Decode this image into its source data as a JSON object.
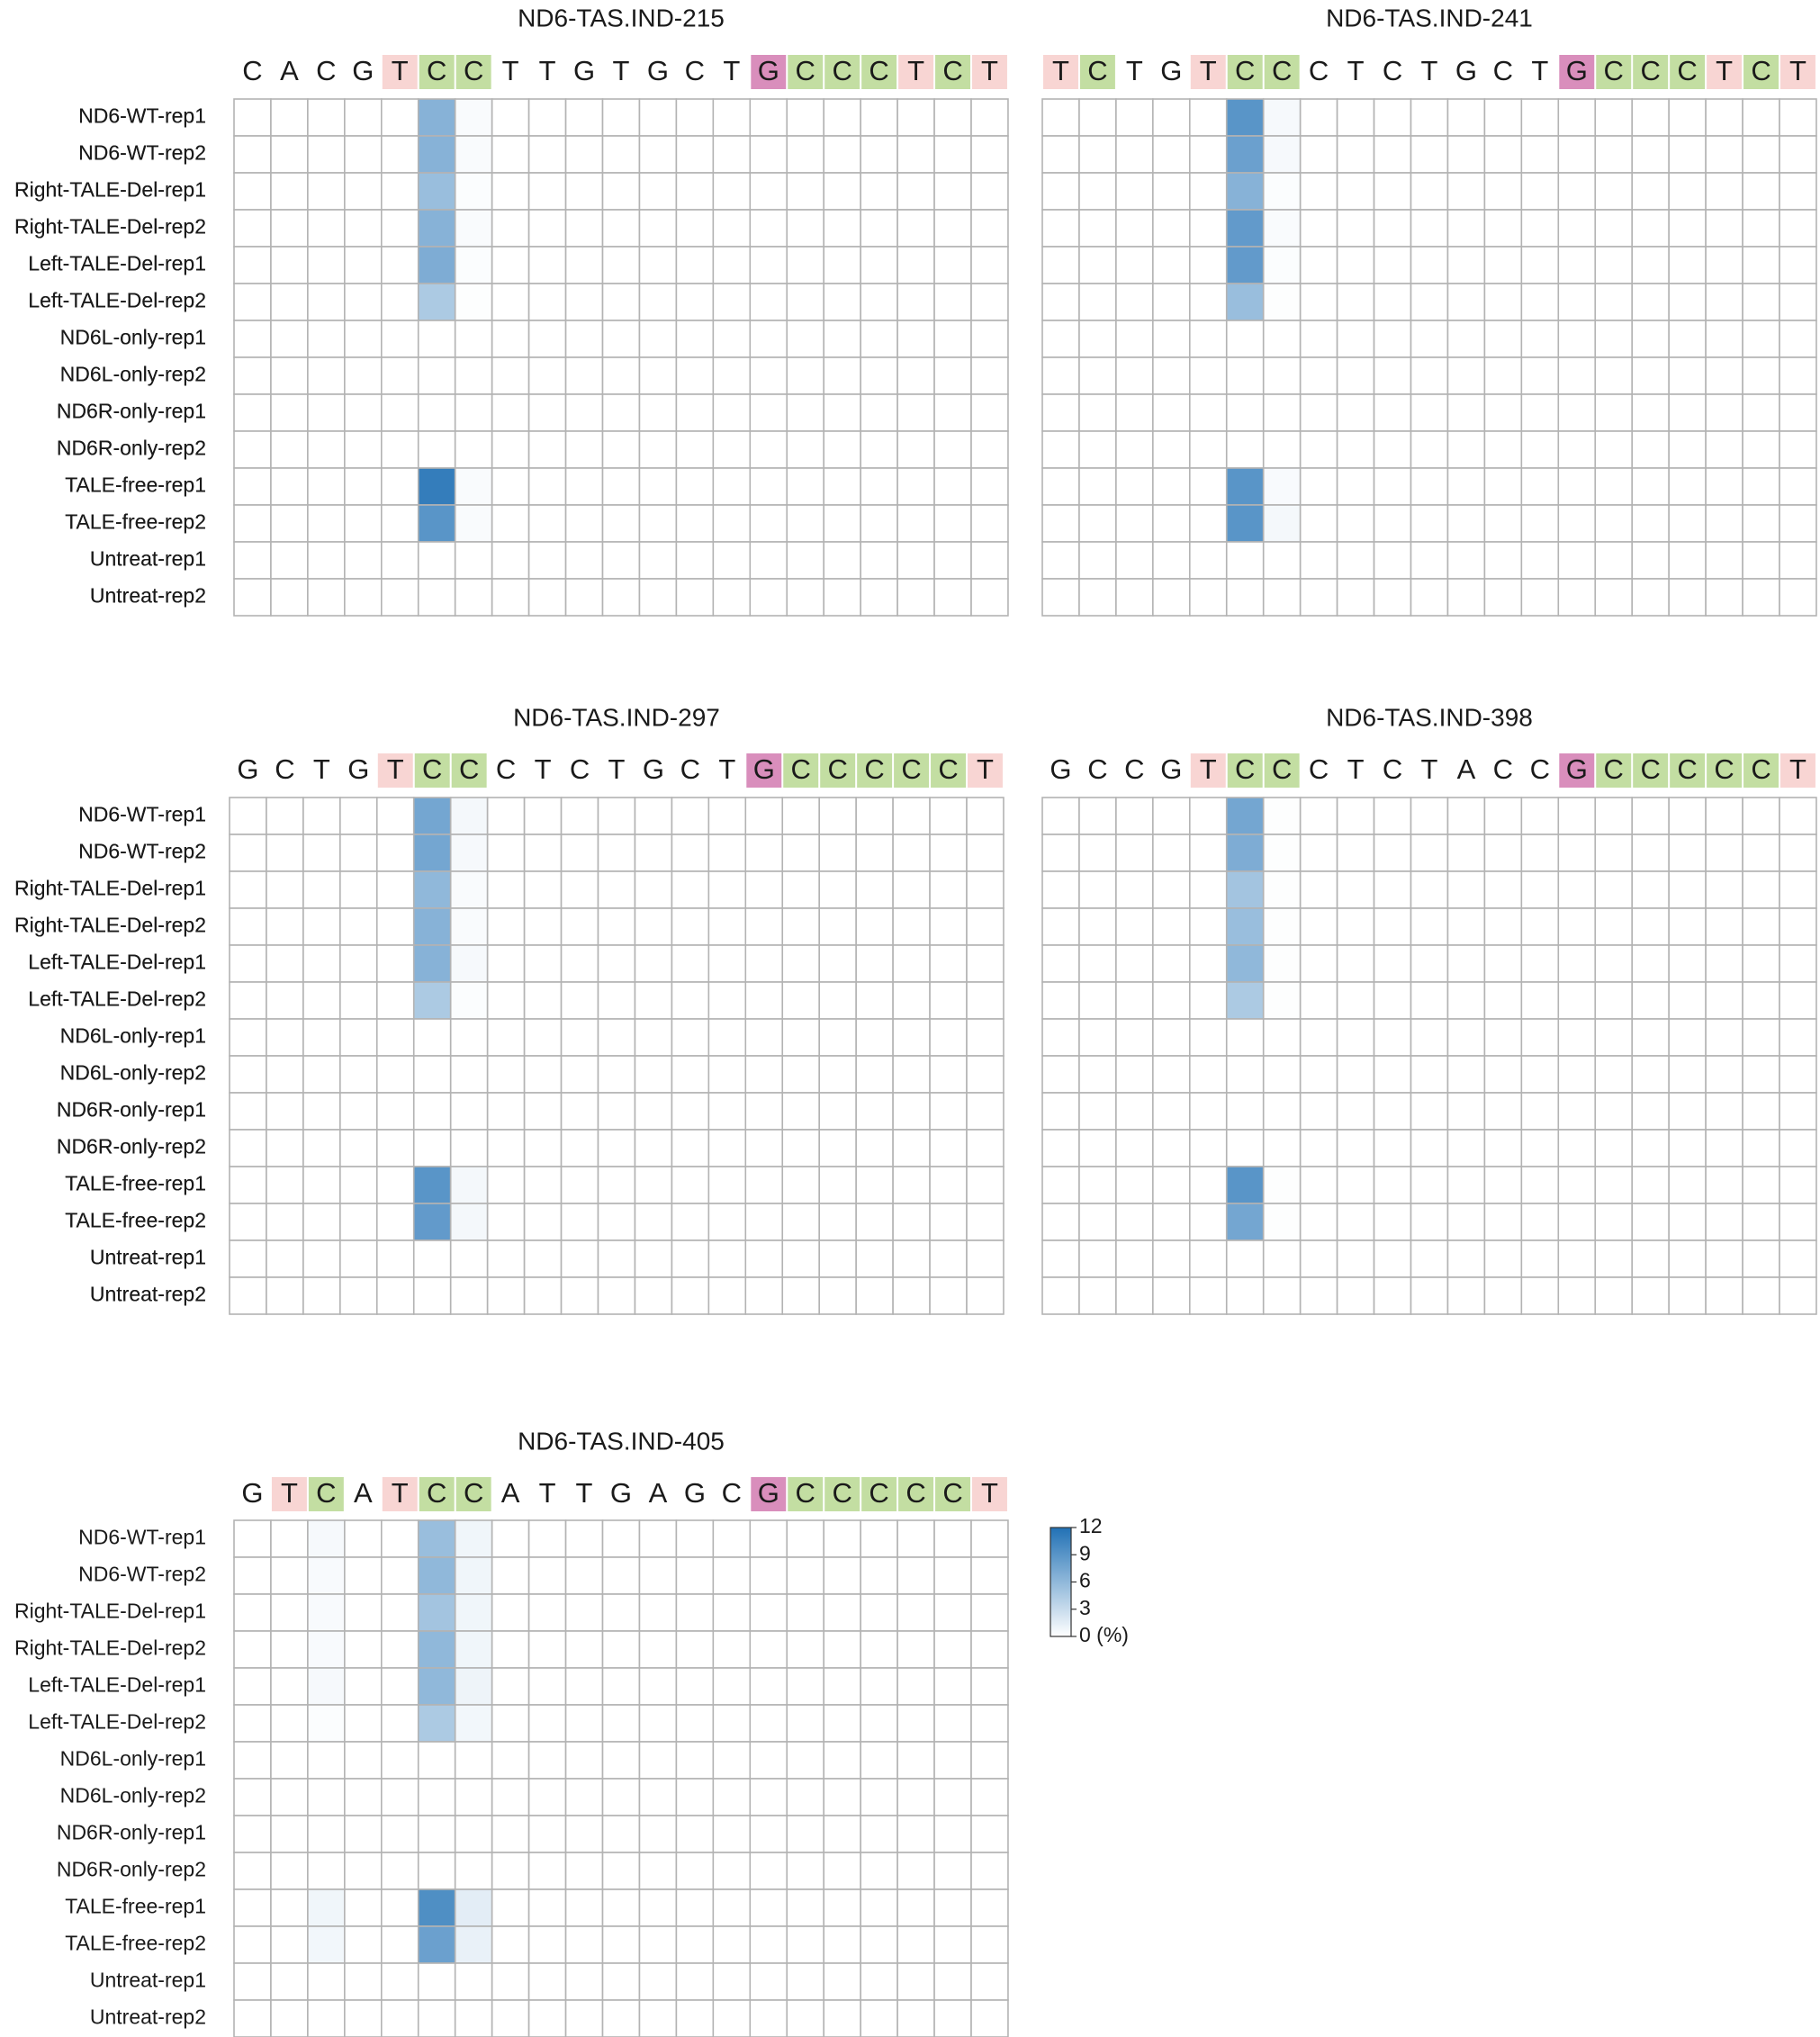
{
  "legend": {
    "ticks": [
      "12",
      "9",
      "6",
      "3",
      "0 (%)"
    ],
    "tick_values": [
      12,
      9,
      6,
      3,
      0
    ],
    "min": 0,
    "max": 12,
    "color_low": "#ffffff",
    "color_high": "#2171b5"
  },
  "base_colors": {
    "T": "#f8d5d3",
    "C": "#c3dea2",
    "G": "#d98ebc",
    "A": "none"
  },
  "row_labels": [
    "ND6-WT-rep1",
    "ND6-WT-rep2",
    "Right-TALE-Del-rep1",
    "Right-TALE-Del-rep2",
    "Left-TALE-Del-rep1",
    "Left-TALE-Del-rep2",
    "ND6L-only-rep1",
    "ND6L-only-rep2",
    "ND6R-only-rep1",
    "ND6R-only-rep2",
    "TALE-free-rep1",
    "TALE-free-rep2",
    "Untreat-rep1",
    "Untreat-rep2"
  ],
  "chart_data": [
    {
      "type": "heatmap",
      "title": "ND6-TAS.IND-215",
      "bases": [
        "C",
        "A",
        "C",
        "G",
        "T",
        "C",
        "C",
        "T",
        "T",
        "G",
        "T",
        "G",
        "C",
        "T",
        "G",
        "C",
        "C",
        "C",
        "T",
        "C",
        "T"
      ],
      "highlighted": [
        false,
        false,
        false,
        false,
        true,
        true,
        true,
        false,
        false,
        false,
        false,
        false,
        false,
        false,
        true,
        true,
        true,
        true,
        true,
        true,
        true
      ],
      "values": {
        "5": [
          6.5,
          6.5,
          5.5,
          6.5,
          7,
          4.5,
          0,
          0,
          0,
          0,
          11,
          9,
          0,
          0
        ],
        "6": [
          0.3,
          0.3,
          0.2,
          0.3,
          0.2,
          0.1,
          0,
          0,
          0,
          0,
          0.3,
          0.3,
          0,
          0
        ]
      }
    },
    {
      "type": "heatmap",
      "title": "ND6-TAS.IND-241",
      "bases": [
        "T",
        "C",
        "T",
        "G",
        "T",
        "C",
        "C",
        "C",
        "T",
        "C",
        "T",
        "G",
        "C",
        "T",
        "G",
        "C",
        "C",
        "C",
        "T",
        "C",
        "T"
      ],
      "highlighted": [
        true,
        true,
        false,
        false,
        true,
        true,
        true,
        false,
        false,
        false,
        false,
        false,
        false,
        false,
        true,
        true,
        true,
        true,
        true,
        true,
        true
      ],
      "values": {
        "5": [
          9,
          8,
          6.5,
          8.5,
          8.5,
          5.5,
          0,
          0,
          0,
          0,
          9,
          9,
          0,
          0
        ],
        "6": [
          0.5,
          0.5,
          0.2,
          0.3,
          0.2,
          0.1,
          0,
          0,
          0,
          0,
          0.4,
          0.6,
          0,
          0
        ]
      }
    },
    {
      "type": "heatmap",
      "title": "ND6-TAS.IND-297",
      "bases": [
        "G",
        "C",
        "T",
        "G",
        "T",
        "C",
        "C",
        "C",
        "T",
        "C",
        "T",
        "G",
        "C",
        "T",
        "G",
        "C",
        "C",
        "C",
        "C",
        "C",
        "T"
      ],
      "highlighted": [
        false,
        false,
        false,
        false,
        true,
        true,
        true,
        false,
        false,
        false,
        false,
        false,
        false,
        false,
        true,
        true,
        true,
        true,
        true,
        true,
        true
      ],
      "values": {
        "5": [
          7.5,
          7.5,
          6,
          6.5,
          6.5,
          4.5,
          0,
          0,
          0,
          0,
          9,
          8.5,
          0,
          0
        ],
        "6": [
          0.6,
          0.5,
          0.3,
          0.3,
          0.5,
          0.2,
          0,
          0,
          0,
          0,
          0.6,
          0.6,
          0,
          0
        ]
      }
    },
    {
      "type": "heatmap",
      "title": "ND6-TAS.IND-398",
      "bases": [
        "G",
        "C",
        "C",
        "G",
        "T",
        "C",
        "C",
        "C",
        "T",
        "C",
        "T",
        "A",
        "C",
        "C",
        "G",
        "C",
        "C",
        "C",
        "C",
        "C",
        "T"
      ],
      "highlighted": [
        false,
        false,
        false,
        false,
        true,
        true,
        true,
        false,
        false,
        false,
        false,
        false,
        false,
        false,
        true,
        true,
        true,
        true,
        true,
        true,
        true
      ],
      "values": {
        "5": [
          7.5,
          7,
          5,
          5.5,
          6,
          4.5,
          0,
          0,
          0,
          0,
          9,
          7.5,
          0,
          0
        ],
        "6": [
          0.1,
          0.1,
          0.1,
          0.1,
          0.1,
          0.1,
          0,
          0,
          0,
          0,
          0.1,
          0.1,
          0,
          0
        ]
      }
    },
    {
      "type": "heatmap",
      "title": "ND6-TAS.IND-405",
      "bases": [
        "G",
        "T",
        "C",
        "A",
        "T",
        "C",
        "C",
        "A",
        "T",
        "T",
        "G",
        "A",
        "G",
        "C",
        "G",
        "C",
        "C",
        "C",
        "C",
        "C",
        "T"
      ],
      "highlighted": [
        false,
        true,
        true,
        false,
        true,
        true,
        true,
        false,
        false,
        false,
        false,
        false,
        false,
        false,
        true,
        true,
        true,
        true,
        true,
        true,
        true
      ],
      "values": {
        "2": [
          0.5,
          0.4,
          0.4,
          0.4,
          0.5,
          0.2,
          0,
          0,
          0,
          0,
          0.8,
          0.7,
          0,
          0
        ],
        "5": [
          5.5,
          6,
          5,
          6,
          6,
          4.5,
          0,
          0,
          0,
          0,
          9.5,
          8,
          0,
          0
        ],
        "6": [
          0.8,
          0.8,
          0.8,
          0.8,
          0.9,
          0.7,
          0,
          0,
          0,
          0,
          1.5,
          1.2,
          0,
          0
        ]
      }
    }
  ]
}
